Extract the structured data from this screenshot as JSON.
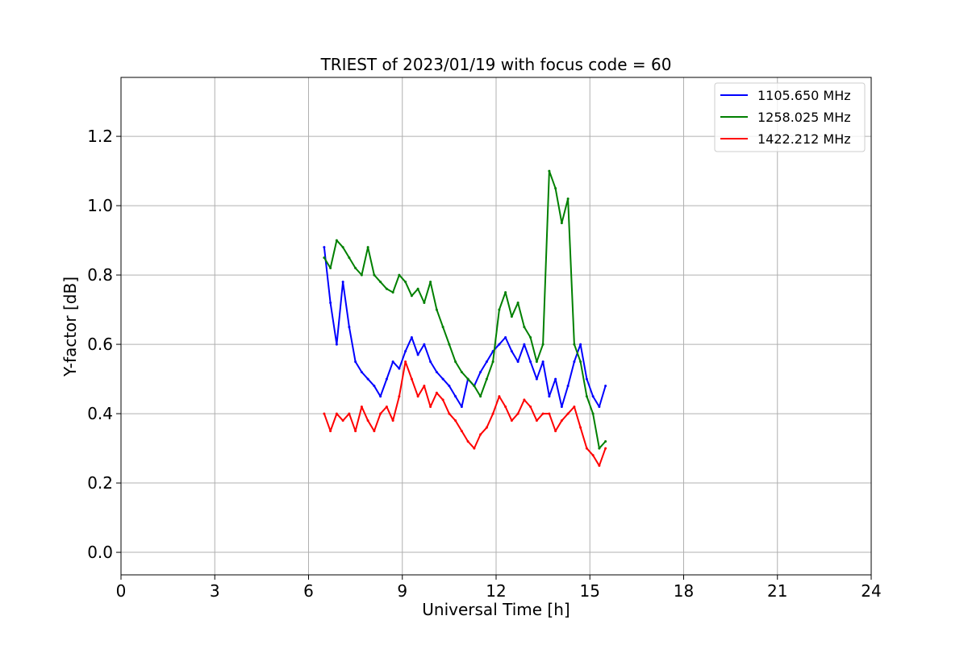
{
  "chart_data": {
    "type": "line",
    "title": "TRIEST of 2023/01/19 with focus code = 60",
    "xlabel": "Universal Time [h]",
    "ylabel": "Y-factor [dB]",
    "xlim": [
      0,
      24
    ],
    "ylim": [
      -0.065,
      1.37
    ],
    "xticks": [
      0,
      3,
      6,
      9,
      12,
      15,
      18,
      21,
      24
    ],
    "xtick_labels": [
      "0",
      "3",
      "6",
      "9",
      "12",
      "15",
      "18",
      "21",
      "24"
    ],
    "yticks": [
      0.0,
      0.2,
      0.4,
      0.6,
      0.8,
      1.0,
      1.2
    ],
    "ytick_labels": [
      "0.0",
      "0.2",
      "0.4",
      "0.6",
      "0.8",
      "1.0",
      "1.2"
    ],
    "grid": true,
    "legend_position": "top-right",
    "series": [
      {
        "name": "1105.650 MHz",
        "color": "#0000ff",
        "x": [
          6.5,
          6.7,
          6.9,
          7.1,
          7.3,
          7.5,
          7.7,
          7.9,
          8.1,
          8.3,
          8.5,
          8.7,
          8.9,
          9.1,
          9.3,
          9.5,
          9.7,
          9.9,
          10.1,
          10.3,
          10.5,
          10.7,
          10.9,
          11.1,
          11.3,
          11.5,
          11.7,
          11.9,
          12.1,
          12.3,
          12.5,
          12.7,
          12.9,
          13.1,
          13.3,
          13.5,
          13.7,
          13.9,
          14.1,
          14.3,
          14.5,
          14.7,
          14.9,
          15.1,
          15.3,
          15.5
        ],
        "values": [
          0.88,
          0.72,
          0.6,
          0.78,
          0.65,
          0.55,
          0.52,
          0.5,
          0.48,
          0.45,
          0.5,
          0.55,
          0.53,
          0.58,
          0.62,
          0.57,
          0.6,
          0.55,
          0.52,
          0.5,
          0.48,
          0.45,
          0.42,
          0.5,
          0.48,
          0.52,
          0.55,
          0.58,
          0.6,
          0.62,
          0.58,
          0.55,
          0.6,
          0.55,
          0.5,
          0.55,
          0.45,
          0.5,
          0.42,
          0.48,
          0.55,
          0.6,
          0.5,
          0.45,
          0.42,
          0.48
        ]
      },
      {
        "name": "1258.025 MHz",
        "color": "#008000",
        "x": [
          6.5,
          6.7,
          6.9,
          7.1,
          7.3,
          7.5,
          7.7,
          7.9,
          8.1,
          8.3,
          8.5,
          8.7,
          8.9,
          9.1,
          9.3,
          9.5,
          9.7,
          9.9,
          10.1,
          10.3,
          10.5,
          10.7,
          10.9,
          11.1,
          11.3,
          11.5,
          11.7,
          11.9,
          12.1,
          12.3,
          12.5,
          12.7,
          12.9,
          13.1,
          13.3,
          13.5,
          13.7,
          13.9,
          14.1,
          14.3,
          14.5,
          14.7,
          14.9,
          15.1,
          15.3,
          15.5
        ],
        "values": [
          0.85,
          0.82,
          0.9,
          0.88,
          0.85,
          0.82,
          0.8,
          0.88,
          0.8,
          0.78,
          0.76,
          0.75,
          0.8,
          0.78,
          0.74,
          0.76,
          0.72,
          0.78,
          0.7,
          0.65,
          0.6,
          0.55,
          0.52,
          0.5,
          0.48,
          0.45,
          0.5,
          0.55,
          0.7,
          0.75,
          0.68,
          0.72,
          0.65,
          0.62,
          0.55,
          0.6,
          1.1,
          1.05,
          0.95,
          1.02,
          0.6,
          0.55,
          0.45,
          0.4,
          0.3,
          0.32
        ]
      },
      {
        "name": "1422.212 MHz",
        "color": "#ff0000",
        "x": [
          6.5,
          6.7,
          6.9,
          7.1,
          7.3,
          7.5,
          7.7,
          7.9,
          8.1,
          8.3,
          8.5,
          8.7,
          8.9,
          9.1,
          9.3,
          9.5,
          9.7,
          9.9,
          10.1,
          10.3,
          10.5,
          10.7,
          10.9,
          11.1,
          11.3,
          11.5,
          11.7,
          11.9,
          12.1,
          12.3,
          12.5,
          12.7,
          12.9,
          13.1,
          13.3,
          13.5,
          13.7,
          13.9,
          14.1,
          14.3,
          14.5,
          14.7,
          14.9,
          15.1,
          15.3,
          15.5
        ],
        "values": [
          0.4,
          0.35,
          0.4,
          0.38,
          0.4,
          0.35,
          0.42,
          0.38,
          0.35,
          0.4,
          0.42,
          0.38,
          0.45,
          0.55,
          0.5,
          0.45,
          0.48,
          0.42,
          0.46,
          0.44,
          0.4,
          0.38,
          0.35,
          0.32,
          0.3,
          0.34,
          0.36,
          0.4,
          0.45,
          0.42,
          0.38,
          0.4,
          0.44,
          0.42,
          0.38,
          0.4,
          0.4,
          0.35,
          0.38,
          0.4,
          0.42,
          0.36,
          0.3,
          0.28,
          0.25,
          0.3
        ]
      }
    ]
  }
}
